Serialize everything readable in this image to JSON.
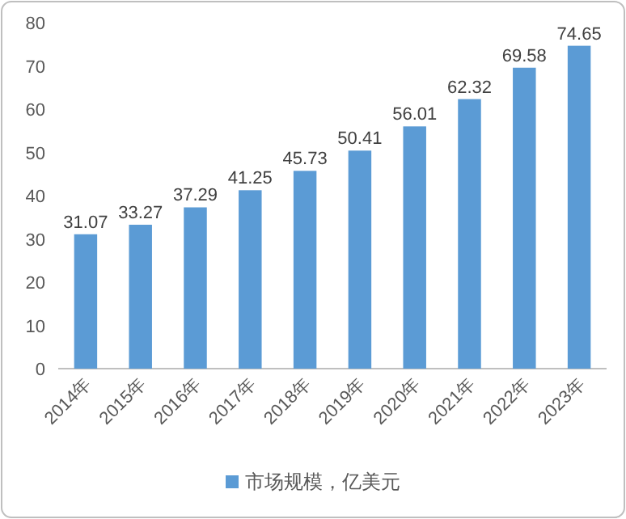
{
  "chart_data": {
    "type": "bar",
    "categories": [
      "2014年",
      "2015年",
      "2016年",
      "2017年",
      "2018年",
      "2019年",
      "2020年",
      "2021年",
      "2022年",
      "2023年"
    ],
    "series": [
      {
        "name": "市场规模，亿美元",
        "color": "#5b9bd5",
        "values": [
          31.07,
          33.27,
          37.29,
          41.25,
          45.73,
          50.41,
          56.01,
          62.32,
          69.58,
          74.65
        ]
      }
    ],
    "ylim": [
      0,
      80
    ],
    "yticks": [
      0,
      10,
      20,
      30,
      40,
      50,
      60,
      70,
      80
    ],
    "data_labels": true,
    "legend": "bottom",
    "grid": false
  }
}
